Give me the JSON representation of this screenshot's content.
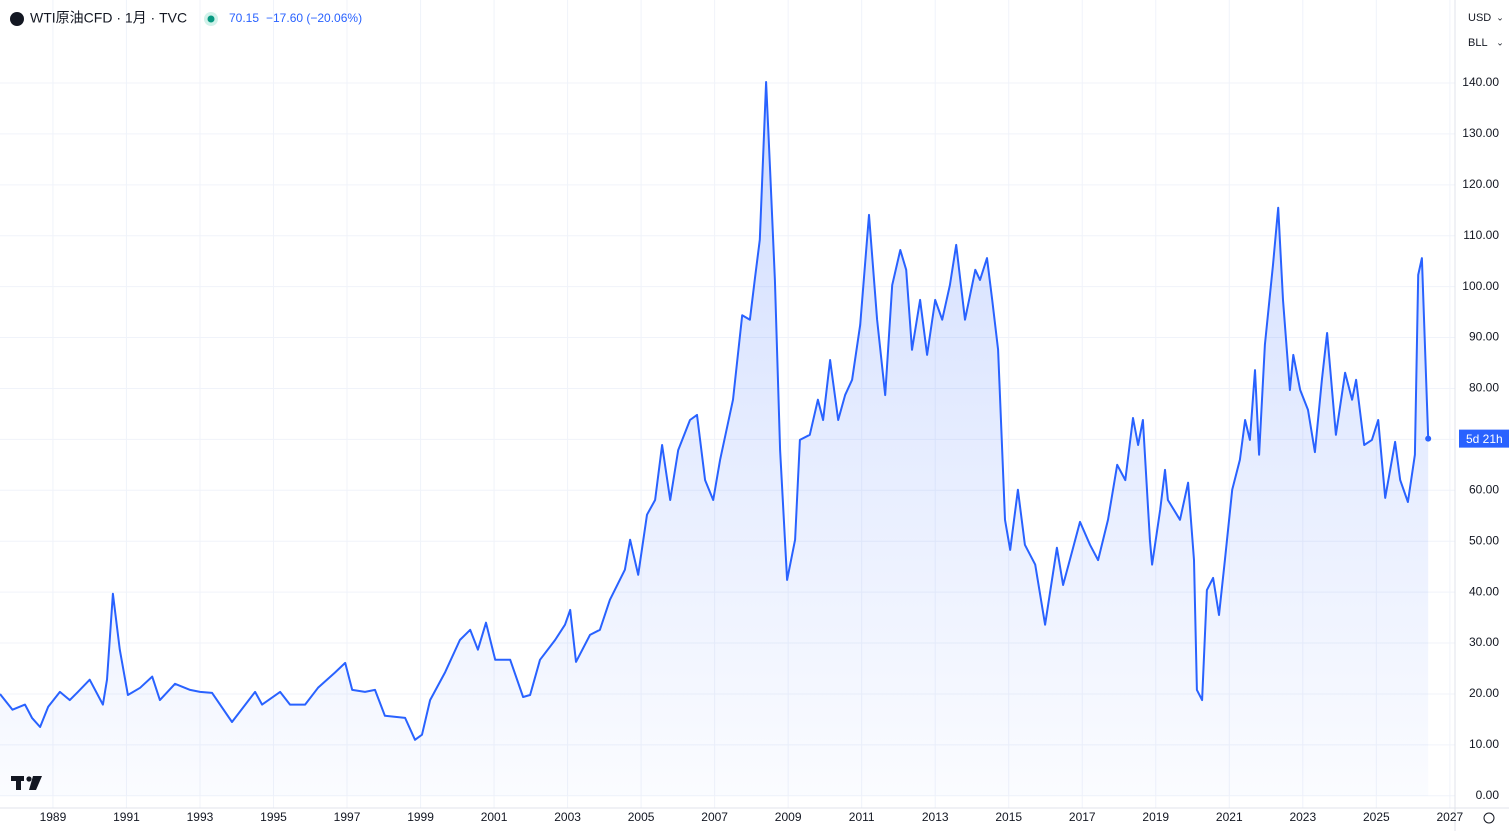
{
  "chart_data": {
    "type": "area",
    "title": "WTI原油CFD · 1月 · TVC",
    "last": "70.15",
    "change": "−17.60 (−20.06%)",
    "currency": "USD",
    "unit": "BLL",
    "countdown": "5d 21h",
    "color": "#2962ff",
    "grid": true,
    "xlim": [
      1987.56,
      2027.14
    ],
    "ylim": [
      -2.4,
      156.3
    ],
    "xticks": [
      1989,
      1991,
      1993,
      1995,
      1997,
      1999,
      2001,
      2003,
      2005,
      2007,
      2009,
      2011,
      2013,
      2015,
      2017,
      2019,
      2021,
      2023,
      2025,
      2027
    ],
    "yticks": [
      {
        "value": 0,
        "label": "0.00"
      },
      {
        "value": 10,
        "label": "10.00"
      },
      {
        "value": 20,
        "label": "20.00"
      },
      {
        "value": 30,
        "label": "30.00"
      },
      {
        "value": 40,
        "label": "40.00"
      },
      {
        "value": 50,
        "label": "50.00"
      },
      {
        "value": 60,
        "label": "60.00"
      },
      {
        "value": 70,
        "label": "70.00"
      },
      {
        "value": 80,
        "label": "80.00"
      },
      {
        "value": 90,
        "label": "90.00"
      },
      {
        "value": 100,
        "label": "100.00"
      },
      {
        "value": 110,
        "label": "110.00"
      },
      {
        "value": 120,
        "label": "120.00"
      },
      {
        "value": 130,
        "label": "130.00"
      },
      {
        "value": 140,
        "label": "140.00"
      }
    ],
    "x": [
      1987.56,
      1987.9,
      1988.24,
      1988.43,
      1988.65,
      1988.87,
      1989.19,
      1989.46,
      1989.68,
      1990.0,
      1990.36,
      1990.47,
      1990.63,
      1990.82,
      1991.04,
      1991.37,
      1991.7,
      1991.91,
      1992.32,
      1992.73,
      1993.0,
      1993.33,
      1993.87,
      1994.5,
      1994.69,
      1995.18,
      1995.45,
      1995.86,
      1996.21,
      1996.67,
      1996.95,
      1997.14,
      1997.49,
      1997.76,
      1998.03,
      1998.58,
      1998.85,
      1999.04,
      1999.26,
      1999.67,
      2000.07,
      2000.35,
      2000.56,
      2000.78,
      2001.03,
      2001.44,
      2001.79,
      2001.98,
      2002.25,
      2002.66,
      2002.93,
      2003.07,
      2003.23,
      2003.61,
      2003.88,
      2004.15,
      2004.56,
      2004.7,
      2004.92,
      2005.16,
      2005.38,
      2005.57,
      2005.79,
      2006.01,
      2006.33,
      2006.52,
      2006.74,
      2006.96,
      2007.15,
      2007.5,
      2007.75,
      2007.96,
      2008.1,
      2008.23,
      2008.4,
      2008.51,
      2008.64,
      2008.78,
      2008.97,
      2009.19,
      2009.32,
      2009.59,
      2009.81,
      2009.95,
      2010.14,
      2010.36,
      2010.55,
      2010.74,
      2010.96,
      2011.2,
      2011.42,
      2011.64,
      2011.83,
      2012.05,
      2012.21,
      2012.37,
      2012.59,
      2012.78,
      2013.0,
      2013.19,
      2013.4,
      2013.57,
      2013.81,
      2014.09,
      2014.22,
      2014.41,
      2014.55,
      2014.71,
      2014.9,
      2015.04,
      2015.25,
      2015.44,
      2015.72,
      2015.99,
      2016.31,
      2016.48,
      2016.72,
      2016.94,
      2017.21,
      2017.43,
      2017.7,
      2017.95,
      2018.17,
      2018.38,
      2018.52,
      2018.65,
      2018.84,
      2018.9,
      2019.12,
      2019.25,
      2019.33,
      2019.66,
      2019.88,
      2020.04,
      2020.12,
      2020.26,
      2020.39,
      2020.56,
      2020.72,
      2020.88,
      2021.08,
      2021.29,
      2021.43,
      2021.56,
      2021.7,
      2021.81,
      2021.97,
      2022.19,
      2022.33,
      2022.46,
      2022.65,
      2022.74,
      2022.93,
      2023.14,
      2023.33,
      2023.52,
      2023.66,
      2023.9,
      2024.15,
      2024.34,
      2024.45,
      2024.67,
      2024.88,
      2025.05,
      2025.24,
      2025.51,
      2025.65,
      2025.86,
      2026.05,
      2026.14,
      2026.24,
      2026.41
    ],
    "values": [
      20.0,
      16.9,
      17.9,
      15.3,
      13.5,
      17.5,
      20.4,
      18.8,
      20.4,
      22.8,
      17.9,
      22.8,
      39.7,
      28.7,
      19.8,
      21.2,
      23.4,
      18.8,
      22.0,
      20.8,
      20.4,
      20.2,
      14.5,
      20.4,
      17.9,
      20.4,
      17.9,
      17.9,
      21.2,
      24.2,
      26.1,
      20.8,
      20.4,
      20.8,
      15.7,
      15.3,
      11.0,
      12.0,
      18.8,
      24.3,
      30.6,
      32.6,
      28.7,
      34.0,
      26.7,
      26.7,
      19.4,
      19.8,
      26.7,
      30.6,
      33.6,
      36.5,
      26.3,
      31.6,
      32.6,
      38.5,
      44.4,
      50.3,
      43.4,
      55.2,
      58.1,
      68.9,
      58.1,
      67.9,
      73.8,
      74.8,
      62.0,
      58.1,
      66.0,
      77.8,
      94.4,
      93.5,
      101.9,
      109.2,
      140.2,
      122.9,
      101.3,
      67.9,
      42.4,
      50.3,
      69.9,
      70.9,
      77.8,
      73.8,
      85.6,
      73.8,
      78.7,
      81.7,
      92.5,
      114.1,
      93.5,
      78.7,
      100.3,
      107.2,
      103.3,
      87.6,
      97.4,
      86.6,
      97.4,
      93.5,
      100.3,
      108.2,
      93.5,
      103.3,
      101.3,
      105.6,
      97.4,
      87.6,
      54.2,
      48.3,
      60.1,
      49.3,
      45.4,
      33.6,
      48.7,
      41.4,
      47.9,
      53.8,
      49.3,
      46.3,
      54.2,
      65.0,
      62.0,
      74.2,
      68.9,
      73.8,
      50.3,
      45.4,
      56.2,
      64.0,
      58.1,
      54.2,
      61.5,
      46.3,
      20.8,
      18.8,
      40.4,
      42.8,
      35.5,
      46.3,
      60.1,
      66.0,
      73.8,
      69.9,
      83.6,
      67.0,
      88.6,
      104.3,
      115.5,
      97.4,
      79.7,
      86.6,
      79.7,
      75.8,
      67.5,
      81.7,
      90.9,
      70.9,
      83.1,
      77.8,
      81.7,
      68.9,
      69.9,
      73.8,
      58.5,
      69.5,
      62.0,
      57.7,
      67.0,
      102.3,
      105.6,
      70.15
    ]
  }
}
